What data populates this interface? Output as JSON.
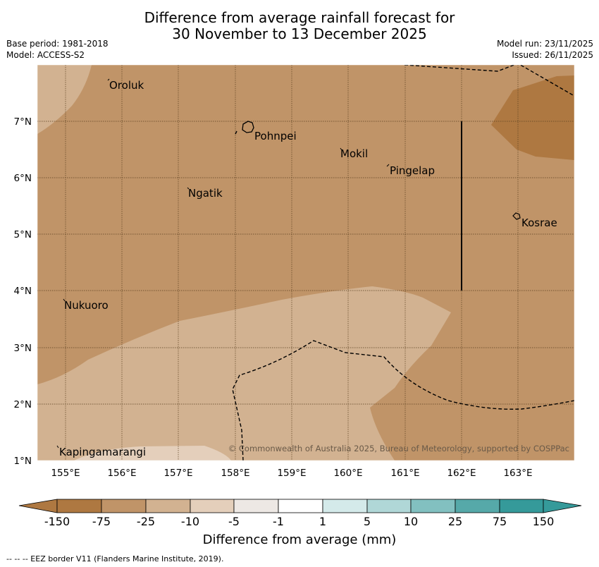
{
  "title": {
    "line1": "Difference from average rainfall forecast for",
    "line2": "30 November to 13 December 2025"
  },
  "meta": {
    "base_period": "Base period: 1981-2018",
    "model": "Model: ACCESS-S2",
    "model_run": "Model run: 23/11/2025",
    "issued": "Issued: 26/11/2025"
  },
  "map": {
    "lon_range": [
      154.5,
      164.0
    ],
    "lat_range": [
      1.0,
      8.0
    ],
    "lon_ticks": [
      "155°E",
      "156°E",
      "157°E",
      "158°E",
      "159°E",
      "160°E",
      "161°E",
      "162°E",
      "163°E"
    ],
    "lat_ticks": [
      "7°N",
      "6°N",
      "5°N",
      "4°N",
      "3°N",
      "2°N",
      "1°N"
    ],
    "places": [
      {
        "name": "Oroluk",
        "lon": 155.75,
        "lat": 7.7
      },
      {
        "name": "Pohnpei",
        "lon": 158.35,
        "lat": 6.88
      },
      {
        "name": "Mokil",
        "lon": 159.85,
        "lat": 6.52
      },
      {
        "name": "Pingelap",
        "lon": 160.7,
        "lat": 6.25
      },
      {
        "name": "Ngatik",
        "lon": 157.15,
        "lat": 5.8
      },
      {
        "name": "Kosrae",
        "lon": 162.98,
        "lat": 5.3
      },
      {
        "name": "Nukuoro",
        "lon": 154.95,
        "lat": 3.85
      },
      {
        "name": "Kapingamarangi",
        "lon": 154.8,
        "lat": 1.23
      }
    ],
    "copyright": "© Commonwealth of Australia 2025, Bureau of Meteorology, supported by COSPPac",
    "colors": {
      "band_-75_-25": "#c09468",
      "band_-25_-10": "#d2b291",
      "band_-10_-5": "#e4cfbb",
      "band_-150_-75": "#ae7841"
    }
  },
  "colorbar": {
    "ticks": [
      "-150",
      "-75",
      "-25",
      "-10",
      "-5",
      "-1",
      "1",
      "5",
      "10",
      "25",
      "75",
      "150"
    ],
    "colors": [
      "#ae7841",
      "#c09468",
      "#d2b291",
      "#e4cfbb",
      "#ede8e4",
      "#ffffff",
      "#ffffff",
      "#d4eaea",
      "#b0d7d7",
      "#82c0c0",
      "#56a9a9",
      "#359a9a"
    ],
    "label": "Difference from average (mm)"
  },
  "footnote": "--  --  -- EEZ border V11 (Flanders Marine Institute, 2019)."
}
